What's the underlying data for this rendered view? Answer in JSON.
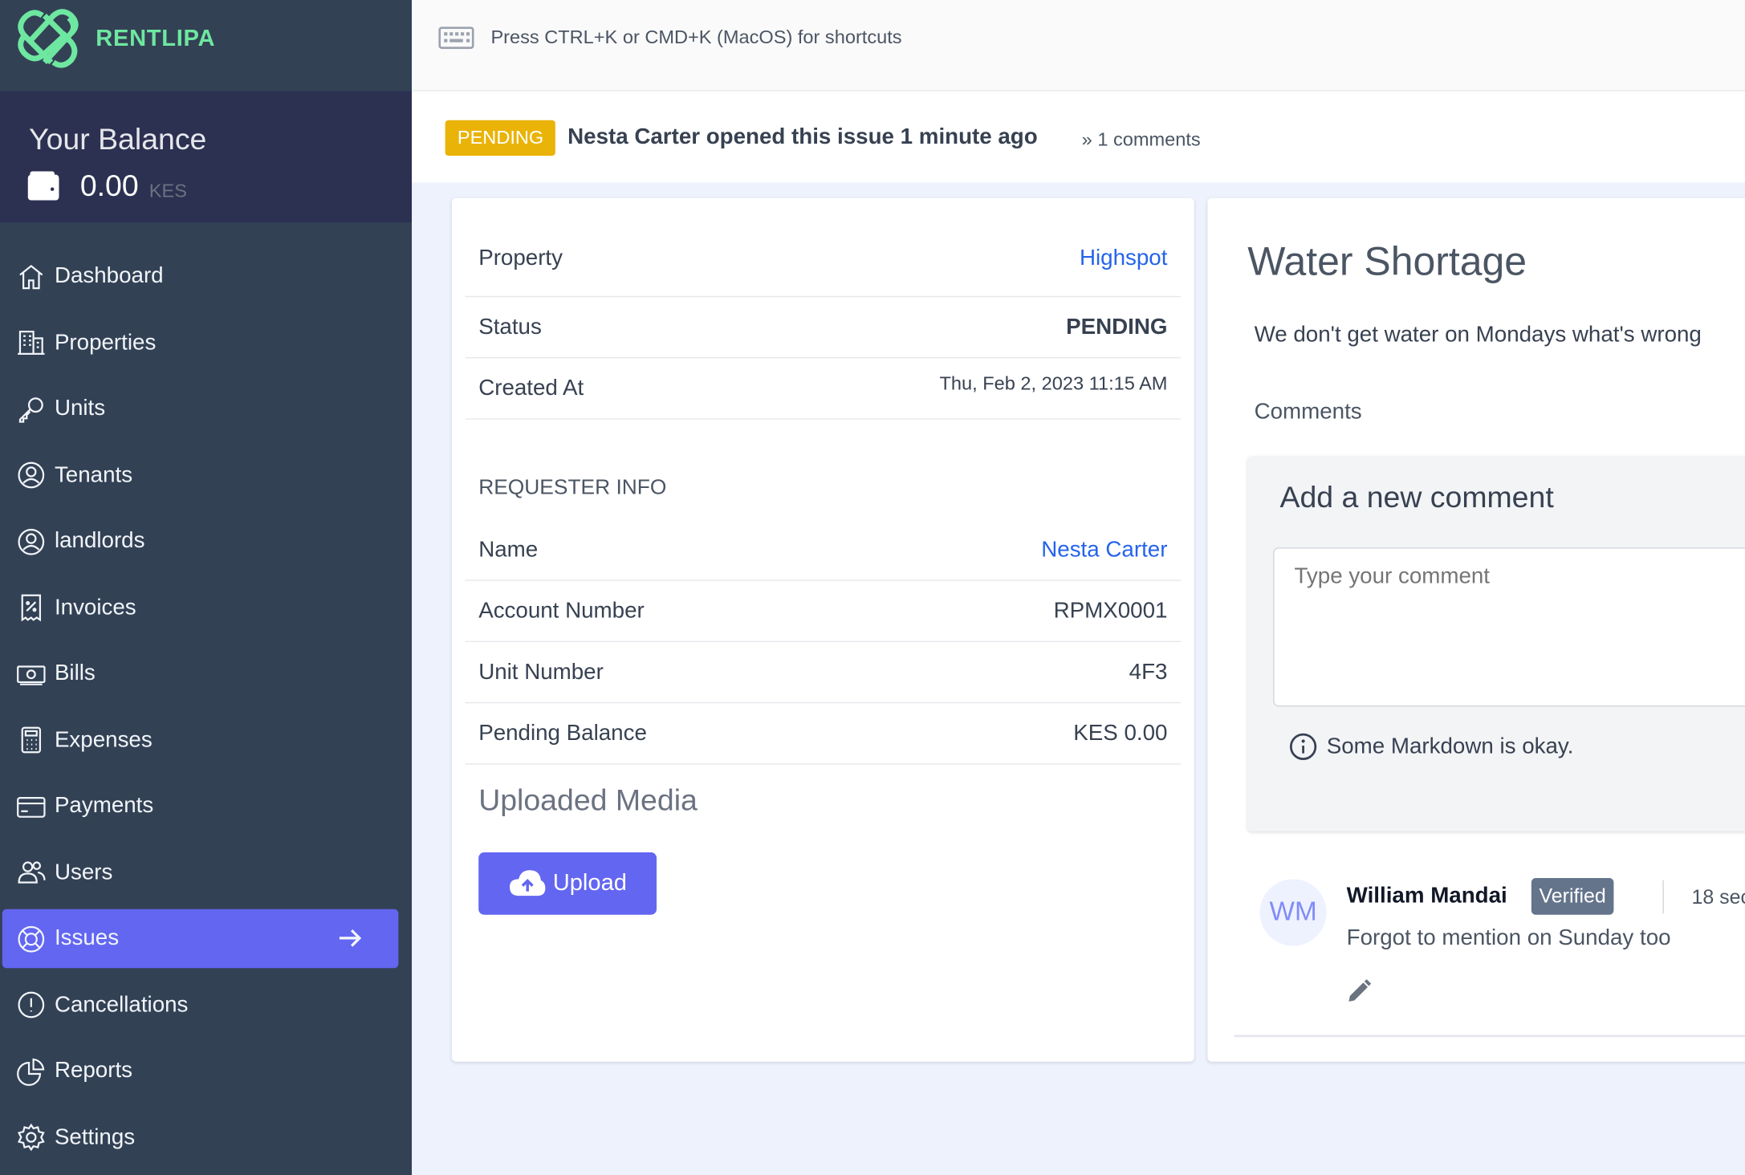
{
  "brand": {
    "name": "RENTLIPA",
    "logo_color": "#6ee7a0"
  },
  "balance": {
    "title": "Your Balance",
    "amount": "0.00",
    "currency": "KES"
  },
  "nav": [
    {
      "label": "Dashboard",
      "icon": "home-icon"
    },
    {
      "label": "Properties",
      "icon": "building-icon"
    },
    {
      "label": "Units",
      "icon": "key-icon"
    },
    {
      "label": "Tenants",
      "icon": "user-circle-icon"
    },
    {
      "label": "landlords",
      "icon": "user-circle-icon"
    },
    {
      "label": "Invoices",
      "icon": "receipt-icon"
    },
    {
      "label": "Bills",
      "icon": "cash-icon"
    },
    {
      "label": "Expenses",
      "icon": "calculator-icon"
    },
    {
      "label": "Payments",
      "icon": "credit-card-icon"
    },
    {
      "label": "Users",
      "icon": "users-icon"
    },
    {
      "label": "Issues",
      "icon": "lifebuoy-icon",
      "active": true
    },
    {
      "label": "Cancellations",
      "icon": "exclamation-circle-icon"
    },
    {
      "label": "Reports",
      "icon": "pie-chart-icon"
    },
    {
      "label": "Settings",
      "icon": "gear-icon"
    }
  ],
  "topbar": {
    "hint": "Press CTRL+K or CMD+K (MacOS) for shortcuts"
  },
  "issue": {
    "status_badge": "PENDING",
    "opened_text": "Nesta Carter opened this issue 1 minute ago",
    "comments_count": "» 1 comments"
  },
  "details": {
    "property_label": "Property",
    "property_value": "Highspot",
    "status_label": "Status",
    "status_value": "PENDING",
    "created_label": "Created At",
    "created_value": "Thu, Feb 2, 2023 11:15 AM",
    "requester_heading": "REQUESTER INFO",
    "name_label": "Name",
    "name_value": "Nesta Carter",
    "account_label": "Account Number",
    "account_value": "RPMX0001",
    "unit_label": "Unit Number",
    "unit_value": "4F3",
    "balance_label": "Pending Balance",
    "balance_value": "KES 0.00",
    "media_heading": "Uploaded Media",
    "upload_label": "Upload"
  },
  "main": {
    "title": "Water Shortage",
    "description": "We don't get water on Mondays what's wrong",
    "comments_heading": "Comments",
    "add_comment_title": "Add a new comment",
    "comment_placeholder": "Type your comment",
    "markdown_note": "Some Markdown is okay.",
    "comments": [
      {
        "initials": "WM",
        "author": "William Mandai",
        "badge": "Verified",
        "time": "18 sec",
        "text": "Forgot to mention on Sunday too"
      }
    ]
  },
  "colors": {
    "accent": "#6366f1",
    "sidebar": "#334155",
    "pending": "#eab308",
    "link": "#2563eb"
  }
}
